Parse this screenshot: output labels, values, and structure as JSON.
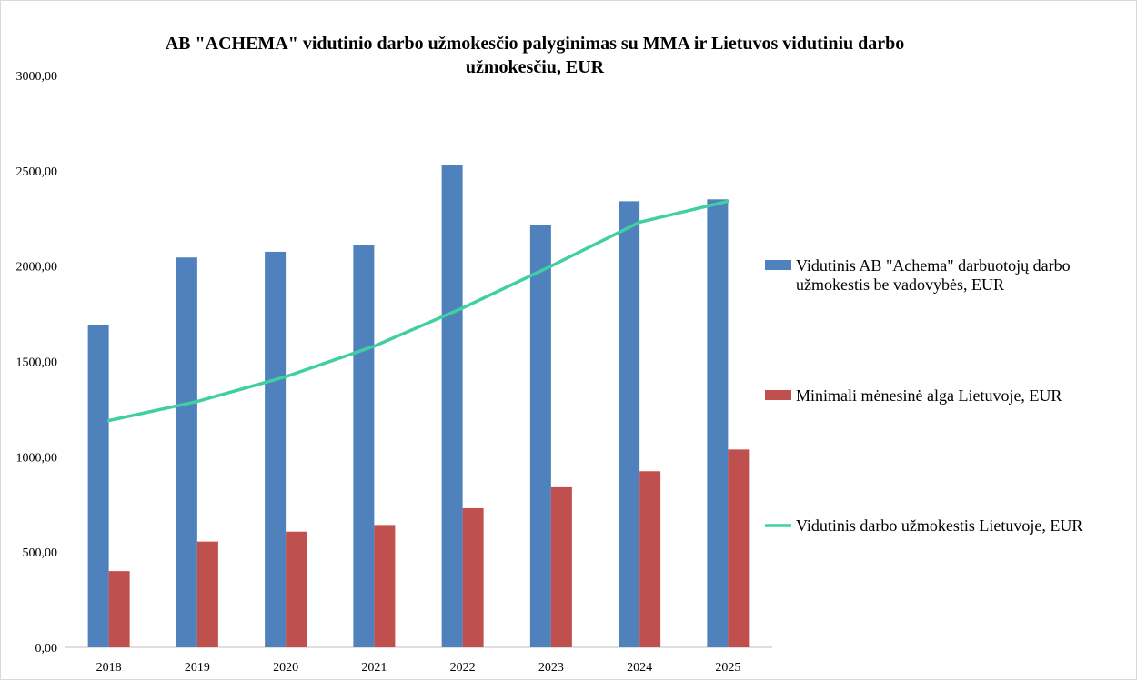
{
  "chart_data": {
    "type": "bar",
    "title": "AB \"ACHEMA\" vidutinio darbo užmokesčio palyginimas su MMA ir Lietuvos vidutiniu darbo užmokesčiu, EUR",
    "title_lines": [
      "AB \"ACHEMA\" vidutinio darbo užmokesčio  palyginimas su MMA ir Lietuvos vidutiniu darbo",
      "užmokesčiu, EUR"
    ],
    "categories": [
      "2018",
      "2019",
      "2020",
      "2021",
      "2022",
      "2023",
      "2024",
      "2025"
    ],
    "series": [
      {
        "name": "Vidutinis AB \"Achema\" darbuotojų darbo užmokestis be vadovybės, EUR",
        "legend_lines": [
          "Vidutinis AB \"Achema\" darbuotojų darbo",
          "užmokestis be vadovybės, EUR"
        ],
        "type": "bar",
        "color": "#4f81bd",
        "values": [
          1690,
          2045,
          2075,
          2110,
          2530,
          2215,
          2340,
          2350
        ]
      },
      {
        "name": "Minimali mėnesinė alga Lietuvoje, EUR",
        "legend_lines": [
          "Minimali mėnesinė alga Lietuvoje, EUR"
        ],
        "type": "bar",
        "color": "#c0504d",
        "values": [
          400,
          555,
          607,
          642,
          730,
          840,
          924,
          1038
        ]
      },
      {
        "name": "Vidutinis darbo užmokestis Lietuvoje, EUR",
        "legend_lines": [
          "Vidutinis darbo užmokestis Lietuvoje, EUR"
        ],
        "type": "line",
        "color": "#40d0a0",
        "values": [
          1190,
          1290,
          1420,
          1580,
          1780,
          2000,
          2230,
          2340
        ]
      }
    ],
    "y_ticks": [
      "0,00",
      "500,00",
      "1000,00",
      "1500,00",
      "2000,00",
      "2500,00",
      "3000,00"
    ],
    "ylim": [
      0,
      3000
    ],
    "xlabel": "",
    "ylabel": "",
    "grid": false,
    "legend_position": "right"
  }
}
